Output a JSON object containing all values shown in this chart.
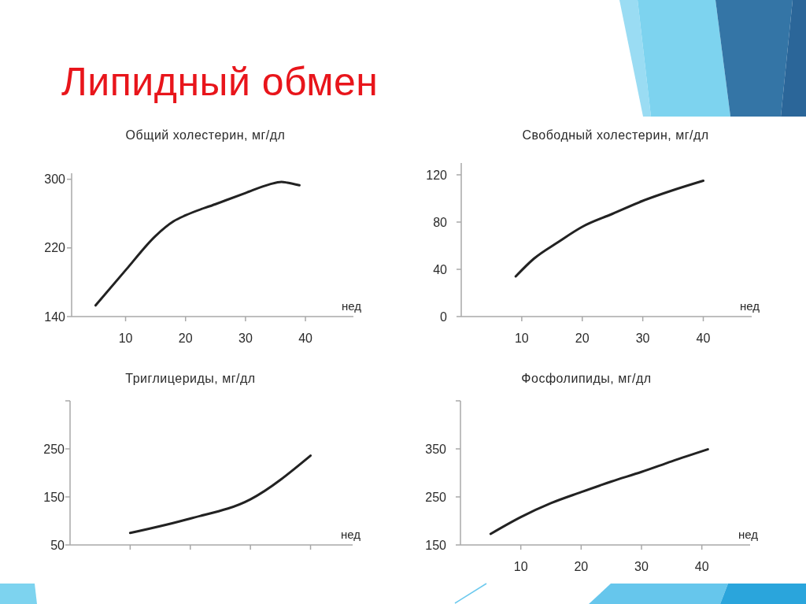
{
  "chart_data": [
    {
      "type": "line",
      "title": "Общий холестерин, мг/дл",
      "xlabel": "нед",
      "annotations": [
        "Липидный обмен"
      ],
      "x": [
        5,
        10,
        15,
        18,
        20,
        25,
        30,
        34,
        36,
        37,
        39
      ],
      "values": [
        153,
        194,
        234,
        251,
        258,
        271,
        284,
        294,
        297,
        296,
        293
      ],
      "color": "#222222",
      "xlim": [
        1,
        48
      ],
      "ylim": [
        140,
        307
      ],
      "xticks": [
        10,
        20,
        30,
        40
      ],
      "yticks": [
        140,
        220,
        300
      ]
    },
    {
      "type": "line",
      "title": "Свободный холестерин, мг/дл",
      "xlabel": "нед",
      "x": [
        9,
        12,
        16,
        20,
        25,
        30,
        35,
        40
      ],
      "values": [
        34,
        49,
        63,
        76,
        87,
        98,
        107,
        115
      ],
      "color": "#222222",
      "xlim": [
        0,
        48
      ],
      "ylim": [
        0,
        130
      ],
      "xticks": [
        10,
        20,
        30,
        40
      ],
      "yticks": [
        0,
        40,
        80,
        120
      ]
    },
    {
      "type": "line",
      "title": "Триглицериды, мг/дл",
      "xlabel": "нед",
      "categories": [
        null,
        null,
        null,
        null
      ],
      "values": [
        75,
        105,
        145,
        236
      ],
      "color": "#222222",
      "ylim": [
        50,
        350
      ],
      "yticks": [
        50,
        150,
        250,
        {
          "value": 350,
          "label": null
        }
      ],
      "tick_labels": "y"
    },
    {
      "type": "line",
      "title": "Фосфолипиды, мг/дл",
      "xlabel": "нед",
      "x": [
        5,
        10,
        15,
        20,
        25,
        30,
        35,
        41
      ],
      "values": [
        173,
        208,
        237,
        260,
        282,
        302,
        324,
        349
      ],
      "color": "#222222",
      "xlim": [
        0,
        48
      ],
      "ylim": [
        150,
        450
      ],
      "xticks": [
        10,
        20,
        30,
        40
      ],
      "yticks": [
        150,
        250,
        350,
        {
          "value": 450,
          "label": null
        }
      ]
    }
  ]
}
